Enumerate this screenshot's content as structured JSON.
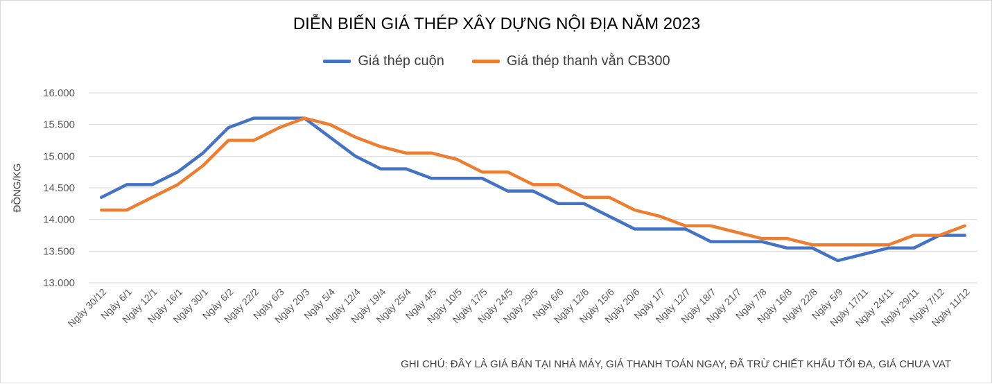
{
  "chart_data": {
    "type": "line",
    "title": "DIỄN BIẾN GIÁ THÉP XÂY DỰNG NỘI ĐỊA NĂM 2023",
    "ylabel": "ĐỒNG/KG",
    "xlabel": "",
    "ylim": [
      13000,
      16000
    ],
    "yticks": [
      13000,
      13500,
      14000,
      14500,
      15000,
      15500,
      16000
    ],
    "ytick_labels": [
      "13.000",
      "13.500",
      "14.000",
      "14.500",
      "15.000",
      "15.500",
      "16.000"
    ],
    "grid": true,
    "legend_position": "top-center",
    "categories": [
      "Ngày 30/12",
      "Ngày 6/1",
      "Ngày 12/1",
      "Ngày 16/1",
      "Ngày 30/1",
      "Ngày 6/2",
      "Ngày 22/2",
      "Ngày 6/3",
      "Ngày 20/3",
      "Ngày 5/4",
      "Ngày 12/4",
      "Ngày 19/4",
      "Ngày 25/4",
      "Ngày 4/5",
      "Ngày 10/5",
      "Ngày 17/5",
      "Ngày 24/5",
      "Ngày 29/5",
      "Ngày 6/6",
      "Ngày 12/6",
      "Ngày 15/6",
      "Ngày 20/6",
      "Ngày 1/7",
      "Ngày 12/7",
      "Ngày 18/7",
      "Ngày 21/7",
      "Ngày 7/8",
      "Ngày 16/8",
      "Ngày 22/8",
      "Ngày 5/9",
      "Ngày 17/11",
      "Ngày 24/11",
      "Ngày 29/11",
      "Ngày 7/12",
      "Ngày 11/12"
    ],
    "series": [
      {
        "name": "Giá thép cuộn",
        "color": "#4472C4",
        "values": [
          14350,
          14550,
          14550,
          14750,
          15050,
          15450,
          15600,
          15600,
          15600,
          15300,
          15000,
          14800,
          14800,
          14650,
          14650,
          14650,
          14450,
          14450,
          14250,
          14250,
          14050,
          13850,
          13850,
          13850,
          13650,
          13650,
          13650,
          13550,
          13550,
          13350,
          13450,
          13550,
          13550,
          13750,
          13750
        ]
      },
      {
        "name": "Giá thép thanh vằn CB300",
        "color": "#ED7D31",
        "values": [
          14150,
          14150,
          14350,
          14550,
          14850,
          15250,
          15250,
          15450,
          15600,
          15500,
          15300,
          15150,
          15050,
          15050,
          14950,
          14750,
          14750,
          14550,
          14550,
          14350,
          14350,
          14150,
          14050,
          13900,
          13900,
          13800,
          13700,
          13700,
          13600,
          13600,
          13600,
          13600,
          13750,
          13750,
          13900
        ]
      }
    ],
    "annotations": [
      "GHI CHÚ: ĐÂY LÀ GIÁ BÁN TẠI NHÀ MÁY, GIÁ THANH TOÁN NGAY, ĐÃ TRỪ CHIẾT KHẤU TỐI ĐA, GIÁ CHƯA VAT"
    ]
  }
}
